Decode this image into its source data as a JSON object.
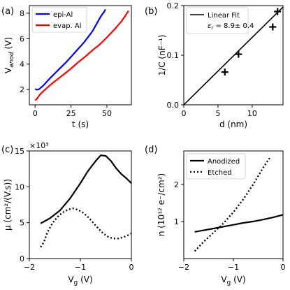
{
  "chart_data": [
    {
      "id": "a",
      "panel_label": "(a)",
      "type": "line",
      "xlabel": "t (s)",
      "ylabel_main": "V",
      "ylabel_sub": "anod",
      "ylabel_unit": " (V)",
      "xlim": [
        -4,
        67
      ],
      "ylim": [
        0.8,
        8.6
      ],
      "xticks": [
        0,
        25,
        50
      ],
      "yticks": [
        2,
        4,
        6,
        8
      ],
      "legend_position": "top-left",
      "series": [
        {
          "name": "epi-Al",
          "color": "#0000ff",
          "x": [
            0,
            1,
            2,
            3,
            4,
            6,
            8,
            10,
            14,
            18,
            22,
            26,
            30,
            34,
            38,
            40,
            42,
            44,
            46,
            48,
            49
          ],
          "y": [
            2.05,
            2.0,
            2.0,
            2.05,
            2.15,
            2.35,
            2.6,
            2.85,
            3.3,
            3.75,
            4.2,
            4.7,
            5.2,
            5.7,
            6.3,
            6.6,
            7.0,
            7.4,
            7.8,
            8.1,
            8.3
          ]
        },
        {
          "name": "evap. Al",
          "color": "#ff0000",
          "x": [
            0,
            1,
            2,
            3,
            5,
            8,
            12,
            16,
            20,
            25,
            30,
            35,
            40,
            45,
            50,
            55,
            60,
            63,
            65
          ],
          "y": [
            1.15,
            1.25,
            1.4,
            1.55,
            1.8,
            2.1,
            2.5,
            2.85,
            3.2,
            3.65,
            4.15,
            4.6,
            5.1,
            5.55,
            6.1,
            6.7,
            7.35,
            7.85,
            8.2
          ]
        }
      ]
    },
    {
      "id": "b",
      "panel_label": "(b)",
      "type": "scatter",
      "xlabel": "d (nm)",
      "ylabel": "1/C (nF⁻¹)",
      "xlim": [
        0,
        14.5
      ],
      "ylim": [
        0,
        0.2
      ],
      "xticks": [
        0,
        5,
        10
      ],
      "yticks": [
        0.0,
        0.1,
        0.2
      ],
      "ytick_labels": [
        "0.0",
        "0.1",
        "0.2"
      ],
      "legend_position": "top-left",
      "fit": {
        "name": "Linear Fit",
        "annotation": "εr = 8.9± 0.4",
        "x": [
          0,
          14.5
        ],
        "y": [
          0,
          0.197
        ]
      },
      "points": {
        "x": [
          6,
          8,
          13,
          13.7
        ],
        "y": [
          0.066,
          0.102,
          0.157,
          0.188
        ]
      }
    },
    {
      "id": "c",
      "panel_label": "(c)",
      "type": "line",
      "xlabel": "V",
      "xlabel_sub": "g",
      "xlabel_unit": " (V)",
      "ylabel": "μ (cm²/(V.s))",
      "multiplier": "×10³",
      "xlim": [
        -2.0,
        0.0
      ],
      "ylim": [
        0,
        15
      ],
      "xticks": [
        -2,
        -1,
        0
      ],
      "xtick_labels": [
        "−2",
        "−1",
        "0"
      ],
      "yticks": [
        0,
        5,
        10,
        15
      ],
      "series": [
        {
          "style": "solid",
          "x": [
            -1.78,
            -1.6,
            -1.4,
            -1.2,
            -1.0,
            -0.85,
            -0.7,
            -0.6,
            -0.5,
            -0.4,
            -0.3,
            -0.2,
            -0.1,
            0.0
          ],
          "y": [
            4.9,
            5.6,
            6.7,
            8.4,
            10.5,
            12.2,
            13.6,
            14.4,
            14.3,
            13.6,
            12.6,
            11.8,
            11.2,
            10.5
          ]
        },
        {
          "style": "dotted",
          "x": [
            -1.78,
            -1.72,
            -1.65,
            -1.55,
            -1.45,
            -1.35,
            -1.25,
            -1.15,
            -1.05,
            -0.95,
            -0.85,
            -0.75,
            -0.65,
            -0.55,
            -0.45,
            -0.35,
            -0.25,
            -0.15,
            -0.05,
            0.0
          ],
          "y": [
            1.6,
            2.2,
            3.6,
            4.9,
            5.8,
            6.4,
            6.8,
            7.0,
            6.8,
            6.4,
            5.8,
            5.0,
            4.2,
            3.5,
            3.0,
            2.8,
            2.8,
            3.0,
            3.3,
            3.5
          ]
        }
      ]
    },
    {
      "id": "d",
      "panel_label": "(d)",
      "type": "line",
      "xlabel": "V",
      "xlabel_sub": "g",
      "xlabel_unit": " (V)",
      "ylabel": "n (10¹² e⁻/cm²)",
      "xlim": [
        -2.0,
        0.0
      ],
      "ylim": [
        0,
        2.9
      ],
      "xticks": [
        -2,
        -1,
        0
      ],
      "xtick_labels": [
        "−2",
        "−1",
        "0"
      ],
      "yticks": [
        1,
        2
      ],
      "legend_position": "top-left",
      "series": [
        {
          "name": "Anodized",
          "style": "solid",
          "x": [
            -1.78,
            -1.6,
            -1.4,
            -1.2,
            -1.0,
            -0.8,
            -0.6,
            -0.4,
            -0.2,
            0.0
          ],
          "y": [
            0.72,
            0.76,
            0.81,
            0.86,
            0.91,
            0.96,
            1.0,
            1.05,
            1.11,
            1.18
          ]
        },
        {
          "name": "Etched",
          "style": "dotted",
          "x": [
            -1.78,
            -1.6,
            -1.4,
            -1.2,
            -1.0,
            -0.8,
            -0.6,
            -0.4,
            -0.25
          ],
          "y": [
            0.2,
            0.45,
            0.7,
            0.95,
            1.25,
            1.6,
            2.0,
            2.45,
            2.75
          ]
        }
      ]
    }
  ]
}
